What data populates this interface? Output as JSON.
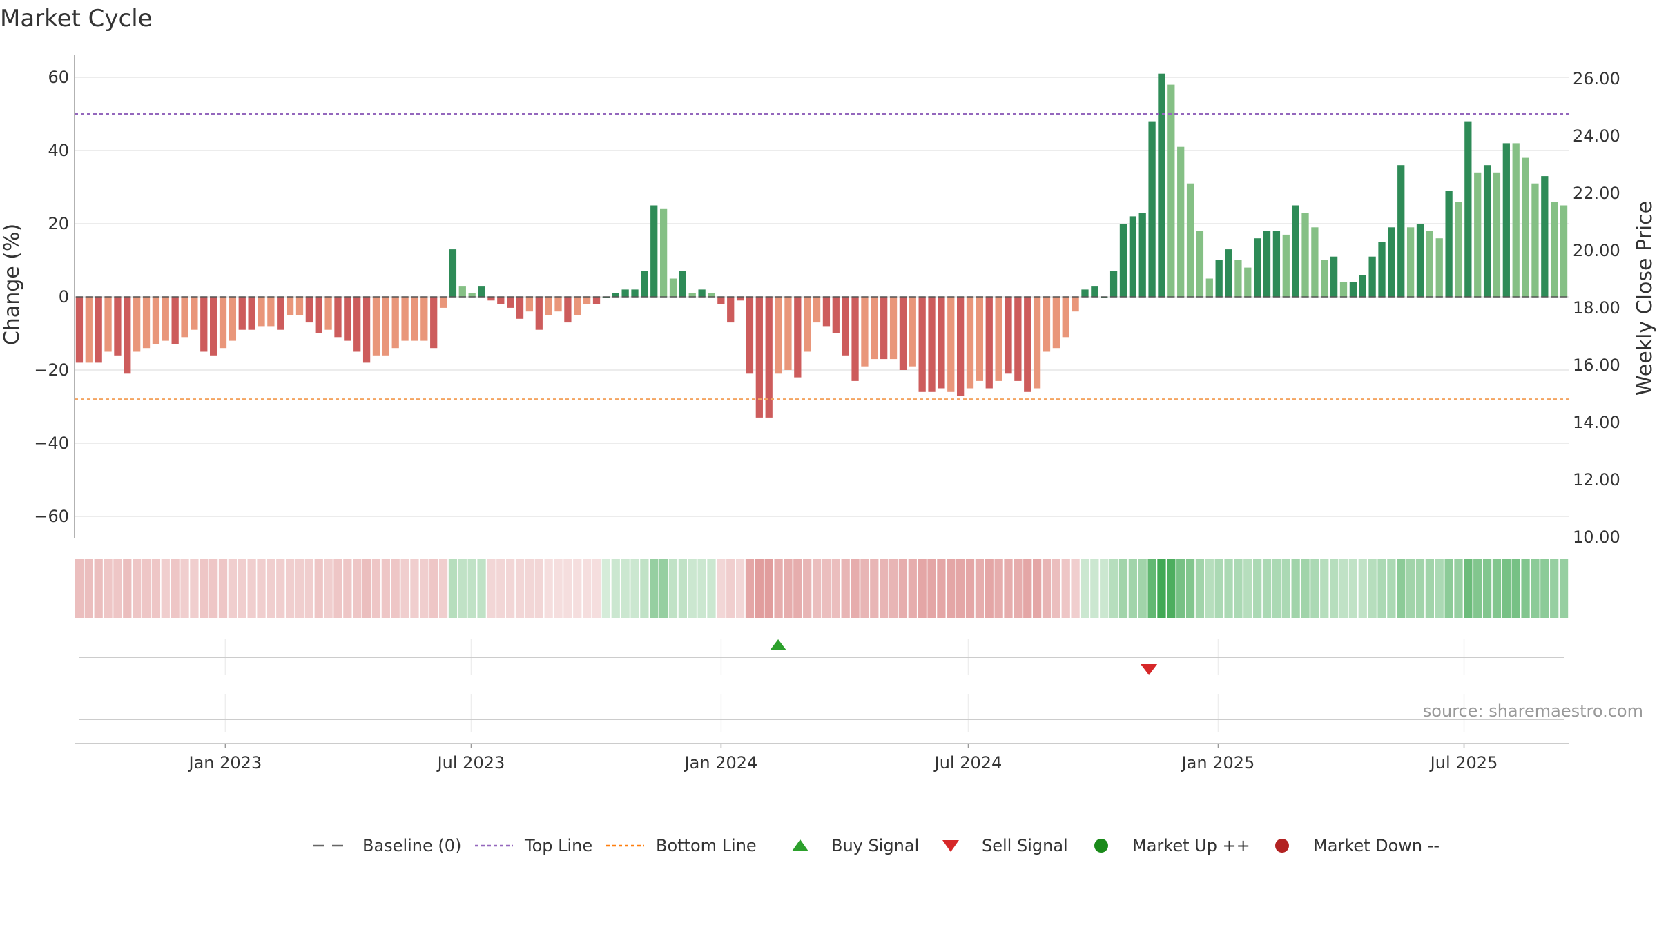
{
  "chart_data": {
    "type": "bar",
    "title": "Market Cycle",
    "ylabel": "Change (%)",
    "y2label": "Weekly Close Price",
    "ylim": [
      -66,
      66
    ],
    "y2lim": [
      10,
      27
    ],
    "yticks": [
      "60",
      "40",
      "20",
      "0",
      "−20",
      "−40",
      "−60"
    ],
    "y2ticks": [
      "26.00",
      "24.00",
      "22.00",
      "20.00",
      "18.00",
      "16.00",
      "14.00",
      "12.00",
      "10.00"
    ],
    "xticks": [
      "Jan 2023",
      "Jul 2023",
      "Jan 2024",
      "Jul 2024",
      "Jan 2025",
      "Jul 2025"
    ],
    "x_start": "2022-09-12",
    "x_end": "2025-09-16",
    "top_line": 50,
    "bottom_line": -28,
    "grid": true,
    "legend_position": "bottom",
    "legend": [
      {
        "label": "Baseline (0)",
        "symbol": "dash",
        "color": "#666666"
      },
      {
        "label": "Top Line",
        "symbol": "dotted",
        "color": "#9467bd"
      },
      {
        "label": "Bottom Line",
        "symbol": "dotted",
        "color": "#ff7f0e"
      },
      {
        "label": "Buy Signal",
        "symbol": "triangle-up",
        "color": "#2ca02c"
      },
      {
        "label": "Sell Signal",
        "symbol": "triangle-down",
        "color": "#d62728"
      },
      {
        "label": "Market Up ++",
        "symbol": "circle",
        "color": "#1a8a1a"
      },
      {
        "label": "Market Down --",
        "symbol": "circle",
        "color": "#b22222"
      }
    ],
    "buy_signals": [
      "2024-02-12"
    ],
    "sell_signals": [
      "2024-11-11"
    ],
    "colors": {
      "strong_up": "#2e8b57",
      "weak_up": "#85c085",
      "strong_down": "#cd5c5c",
      "weak_down": "#e9967a",
      "top_line": "#9467bd",
      "bottom_line": "#f4a460",
      "baseline": "#555555"
    },
    "series": [
      {
        "values": [
          -18,
          -18,
          -18,
          -15,
          -16,
          -21,
          -15,
          -14,
          -13,
          -12,
          -13,
          -11,
          -9,
          -15,
          -16,
          -14,
          -12,
          -9,
          -9,
          -8,
          -8,
          -9,
          -5,
          -5,
          -7,
          -10,
          -9,
          -11,
          -12,
          -15,
          -18,
          -16,
          -16,
          -14,
          -12,
          -12,
          -12,
          -14,
          -3,
          13,
          3,
          1,
          3,
          -1,
          -2,
          -3,
          -6,
          -4,
          -9,
          -5,
          -4,
          -7,
          -5,
          -2,
          -2,
          0,
          1,
          2,
          2,
          7,
          25,
          24,
          5,
          7,
          1,
          2,
          1,
          -2,
          -7,
          -1,
          -21,
          -33,
          -33,
          -21,
          -20,
          -22,
          -15,
          -7,
          -8,
          -10,
          -16,
          -23,
          -19,
          -17,
          -17,
          -17,
          -20,
          -19,
          -26,
          -26,
          -25,
          -26,
          -27,
          -25,
          -23,
          -25,
          -23,
          -21,
          -23,
          -26,
          -25,
          -15,
          -14,
          -11,
          -4,
          2,
          3,
          0,
          7,
          20,
          22,
          23,
          48,
          61,
          58,
          41,
          31,
          18,
          5,
          10,
          13,
          10,
          8,
          16,
          18,
          18,
          17,
          25,
          23,
          19,
          10,
          11,
          4,
          4,
          6,
          11,
          15,
          19,
          36,
          19,
          20,
          18,
          16,
          29,
          26,
          48,
          34,
          36,
          34,
          42,
          42,
          38,
          31,
          33,
          26,
          25
        ],
        "strength": [
          "s",
          "w",
          "s",
          "w",
          "s",
          "s",
          "w",
          "w",
          "w",
          "w",
          "s",
          "w",
          "w",
          "s",
          "s",
          "w",
          "w",
          "s",
          "s",
          "w",
          "w",
          "s",
          "w",
          "w",
          "s",
          "s",
          "w",
          "s",
          "s",
          "s",
          "s",
          "w",
          "w",
          "w",
          "w",
          "w",
          "w",
          "s",
          "w",
          "s",
          "w",
          "w",
          "s",
          "s",
          "s",
          "s",
          "s",
          "w",
          "s",
          "w",
          "w",
          "s",
          "w",
          "w",
          "s",
          "s",
          "s",
          "s",
          "s",
          "s",
          "s",
          "w",
          "w",
          "s",
          "w",
          "s",
          "w",
          "s",
          "s",
          "s",
          "s",
          "s",
          "s",
          "w",
          "w",
          "s",
          "w",
          "w",
          "s",
          "s",
          "s",
          "s",
          "w",
          "w",
          "s",
          "w",
          "s",
          "w",
          "s",
          "s",
          "s",
          "w",
          "s",
          "w",
          "w",
          "s",
          "w",
          "s",
          "s",
          "s",
          "w",
          "w",
          "w",
          "w",
          "w",
          "s",
          "s",
          "s",
          "s",
          "s",
          "s",
          "s",
          "s",
          "s",
          "w",
          "w",
          "w",
          "w",
          "w",
          "s",
          "s",
          "w",
          "w",
          "s",
          "s",
          "s",
          "w",
          "s",
          "w",
          "w",
          "w",
          "s",
          "w",
          "s",
          "s",
          "s",
          "s",
          "s",
          "s",
          "w",
          "s",
          "w",
          "w",
          "s",
          "w",
          "s",
          "w",
          "s",
          "w",
          "s",
          "w",
          "w",
          "w",
          "s",
          "w",
          "w"
        ]
      }
    ],
    "heat": [
      0.4,
      0.4,
      0.4,
      0.35,
      0.35,
      0.4,
      0.35,
      0.35,
      0.35,
      0.3,
      0.35,
      0.3,
      0.3,
      0.35,
      0.35,
      0.35,
      0.3,
      0.3,
      0.3,
      0.3,
      0.3,
      0.3,
      0.3,
      0.3,
      0.3,
      0.35,
      0.3,
      0.35,
      0.35,
      0.35,
      0.4,
      0.35,
      0.35,
      0.35,
      0.3,
      0.3,
      0.3,
      0.35,
      0.3,
      0.35,
      0.3,
      0.3,
      0.3,
      0.25,
      0.25,
      0.25,
      0.25,
      0.25,
      0.25,
      0.2,
      0.2,
      0.2,
      0.2,
      0.2,
      0.2,
      0.2,
      0.25,
      0.25,
      0.25,
      0.3,
      0.5,
      0.5,
      0.3,
      0.3,
      0.25,
      0.25,
      0.25,
      0.25,
      0.3,
      0.25,
      0.55,
      0.6,
      0.6,
      0.5,
      0.5,
      0.5,
      0.45,
      0.4,
      0.4,
      0.4,
      0.45,
      0.5,
      0.45,
      0.45,
      0.45,
      0.45,
      0.5,
      0.5,
      0.55,
      0.55,
      0.55,
      0.55,
      0.55,
      0.55,
      0.5,
      0.55,
      0.5,
      0.5,
      0.5,
      0.55,
      0.55,
      0.45,
      0.4,
      0.35,
      0.3,
      0.25,
      0.25,
      0.25,
      0.35,
      0.45,
      0.45,
      0.45,
      0.75,
      0.9,
      0.85,
      0.65,
      0.6,
      0.45,
      0.35,
      0.4,
      0.4,
      0.4,
      0.35,
      0.4,
      0.4,
      0.4,
      0.4,
      0.45,
      0.45,
      0.4,
      0.35,
      0.35,
      0.3,
      0.3,
      0.3,
      0.35,
      0.4,
      0.4,
      0.55,
      0.45,
      0.45,
      0.45,
      0.4,
      0.55,
      0.5,
      0.7,
      0.6,
      0.6,
      0.6,
      0.65,
      0.65,
      0.6,
      0.55,
      0.55,
      0.5,
      0.5
    ],
    "source": "source: sharemaestro.com"
  }
}
